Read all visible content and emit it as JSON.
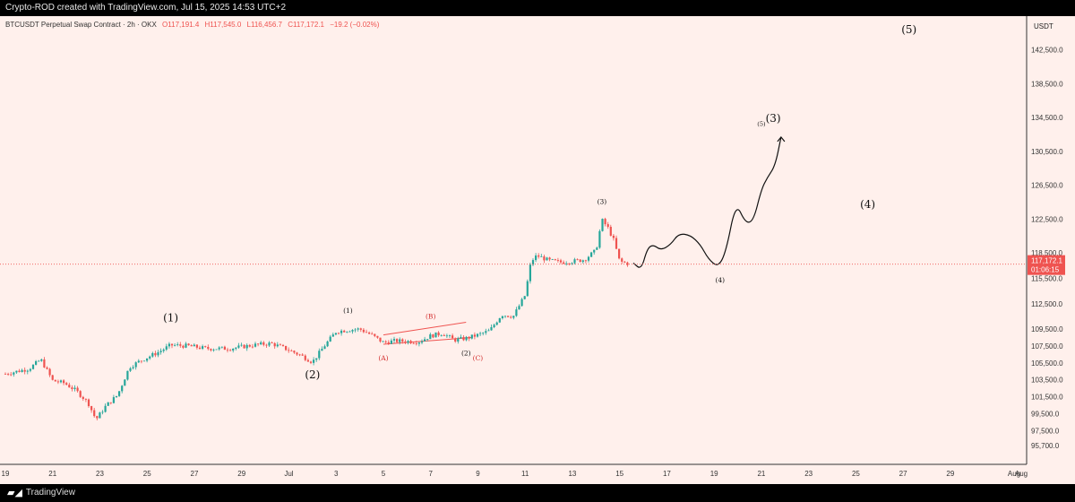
{
  "header": {
    "credit": "Crypto-ROD created with TradingView.com, Jul 15, 2025 14:53 UTC+2"
  },
  "footer": {
    "brand": "TradingView",
    "brand_icon": "tradingview-logo-icon"
  },
  "colors": {
    "background": "#fff0ec",
    "up": "#26a69a",
    "down": "#ef5350",
    "path": "#111111",
    "price_tag": "#ef5350"
  },
  "chart_data": {
    "type": "candlestick",
    "legend": {
      "symbol": "BTCUSDT Perpetual Swap Contract · 2h · OKX",
      "open": "O117,191.4",
      "high": "H117,545.0",
      "low": "L116,456.7",
      "close": "C117,172.1",
      "change": "−19.2 (−0.02%)"
    },
    "currency": "USDT",
    "last_price": "117,172.1",
    "countdown": "01:06:15",
    "last_price_value": 117172.1,
    "y_axis": {
      "min": 93500,
      "max": 146500,
      "ticks": [
        95700,
        97500,
        99500,
        101500,
        103500,
        105500,
        107500,
        109500,
        112500,
        115500,
        118500,
        122500,
        126500,
        130500,
        134500,
        138500,
        142500
      ],
      "tick_labels": [
        "95,700.0",
        "97,500.0",
        "99,500.0",
        "101,500.0",
        "103,500.0",
        "105,500.0",
        "107,500.0",
        "109,500.0",
        "112,500.0",
        "115,500.0",
        "118,500.0",
        "122,500.0",
        "126,500.0",
        "130,500.0",
        "134,500.0",
        "138,500.0",
        "142,500.0"
      ]
    },
    "x_axis": {
      "start": "2025-06-19",
      "end": "2025-08-01",
      "ticks": [
        "2025-06-19",
        "2025-06-21",
        "2025-06-23",
        "2025-06-25",
        "2025-06-27",
        "2025-06-29",
        "2025-07-01",
        "2025-07-03",
        "2025-07-05",
        "2025-07-07",
        "2025-07-09",
        "2025-07-11",
        "2025-07-13",
        "2025-07-15",
        "2025-07-17",
        "2025-07-19",
        "2025-07-21",
        "2025-07-23",
        "2025-07-25",
        "2025-07-27",
        "2025-07-29",
        "2025-08-01"
      ],
      "tick_labels": [
        "19",
        "21",
        "23",
        "25",
        "27",
        "29",
        "Jul",
        "3",
        "5",
        "7",
        "9",
        "11",
        "13",
        "15",
        "17",
        "19",
        "21",
        "23",
        "25",
        "27",
        "29",
        "Aug"
      ]
    },
    "price_anchors": [
      {
        "x": "2025-06-19T00:00",
        "y": 104200
      },
      {
        "x": "2025-06-20T00:00",
        "y": 104800
      },
      {
        "x": "2025-06-20T12:00",
        "y": 105900
      },
      {
        "x": "2025-06-21T00:00",
        "y": 103400
      },
      {
        "x": "2025-06-21T12:00",
        "y": 103100
      },
      {
        "x": "2025-06-22T00:00",
        "y": 102200
      },
      {
        "x": "2025-06-22T12:00",
        "y": 100800
      },
      {
        "x": "2025-06-22T20:00",
        "y": 98800
      },
      {
        "x": "2025-06-23T06:00",
        "y": 100400
      },
      {
        "x": "2025-06-23T18:00",
        "y": 101700
      },
      {
        "x": "2025-06-24T06:00",
        "y": 105000
      },
      {
        "x": "2025-06-24T18:00",
        "y": 105800
      },
      {
        "x": "2025-06-25T12:00",
        "y": 106800
      },
      {
        "x": "2025-06-26T00:00",
        "y": 107600
      },
      {
        "x": "2025-06-26T18:00",
        "y": 107500
      },
      {
        "x": "2025-06-27T12:00",
        "y": 107200
      },
      {
        "x": "2025-06-28T12:00",
        "y": 107200
      },
      {
        "x": "2025-06-29T12:00",
        "y": 107600
      },
      {
        "x": "2025-06-30T06:00",
        "y": 107800
      },
      {
        "x": "2025-06-30T18:00",
        "y": 107300
      },
      {
        "x": "2025-07-01T12:00",
        "y": 106400
      },
      {
        "x": "2025-07-02T00:00",
        "y": 105600
      },
      {
        "x": "2025-07-02T12:00",
        "y": 107500
      },
      {
        "x": "2025-07-03T00:00",
        "y": 109200
      },
      {
        "x": "2025-07-03T12:00",
        "y": 109400
      },
      {
        "x": "2025-07-04T00:00",
        "y": 109500
      },
      {
        "x": "2025-07-04T12:00",
        "y": 108800
      },
      {
        "x": "2025-07-05T00:00",
        "y": 107900
      },
      {
        "x": "2025-07-05T12:00",
        "y": 108100
      },
      {
        "x": "2025-07-06T12:00",
        "y": 108000
      },
      {
        "x": "2025-07-07T00:00",
        "y": 108700
      },
      {
        "x": "2025-07-07T12:00",
        "y": 109000
      },
      {
        "x": "2025-07-08T00:00",
        "y": 108200
      },
      {
        "x": "2025-07-08T12:00",
        "y": 108400
      },
      {
        "x": "2025-07-09T00:00",
        "y": 108800
      },
      {
        "x": "2025-07-09T12:00",
        "y": 109300
      },
      {
        "x": "2025-07-10T00:00",
        "y": 111200
      },
      {
        "x": "2025-07-10T12:00",
        "y": 111000
      },
      {
        "x": "2025-07-11T00:00",
        "y": 113500
      },
      {
        "x": "2025-07-11T06:00",
        "y": 117500
      },
      {
        "x": "2025-07-11T12:00",
        "y": 118200
      },
      {
        "x": "2025-07-12T00:00",
        "y": 117600
      },
      {
        "x": "2025-07-12T12:00",
        "y": 117400
      },
      {
        "x": "2025-07-13T00:00",
        "y": 117500
      },
      {
        "x": "2025-07-13T12:00",
        "y": 117700
      },
      {
        "x": "2025-07-14T00:00",
        "y": 118800
      },
      {
        "x": "2025-07-14T06:00",
        "y": 122400
      },
      {
        "x": "2025-07-14T12:00",
        "y": 121500
      },
      {
        "x": "2025-07-14T18:00",
        "y": 120000
      },
      {
        "x": "2025-07-15T00:00",
        "y": 117500
      },
      {
        "x": "2025-07-15T10:00",
        "y": 117172
      }
    ],
    "projection_path": [
      {
        "x": "2025-07-15T14:00",
        "y": 117300
      },
      {
        "x": "2025-07-15T22:00",
        "y": 116500
      },
      {
        "x": "2025-07-16T04:00",
        "y": 119000
      },
      {
        "x": "2025-07-16T10:00",
        "y": 119500
      },
      {
        "x": "2025-07-16T18:00",
        "y": 118800
      },
      {
        "x": "2025-07-17T04:00",
        "y": 119500
      },
      {
        "x": "2025-07-17T12:00",
        "y": 120800
      },
      {
        "x": "2025-07-18T00:00",
        "y": 120600
      },
      {
        "x": "2025-07-18T10:00",
        "y": 119500
      },
      {
        "x": "2025-07-18T18:00",
        "y": 117800
      },
      {
        "x": "2025-07-19T04:00",
        "y": 116800
      },
      {
        "x": "2025-07-19T12:00",
        "y": 118600
      },
      {
        "x": "2025-07-19T22:00",
        "y": 124500
      },
      {
        "x": "2025-07-20T08:00",
        "y": 122000
      },
      {
        "x": "2025-07-20T16:00",
        "y": 122300
      },
      {
        "x": "2025-07-21T00:00",
        "y": 126000
      },
      {
        "x": "2025-07-21T06:00",
        "y": 127400
      },
      {
        "x": "2025-07-21T14:00",
        "y": 128800
      },
      {
        "x": "2025-07-21T20:00",
        "y": 132200
      }
    ],
    "channel_lines": [
      {
        "from": {
          "x": "2025-07-05T00:00",
          "y": 108800
        },
        "to": {
          "x": "2025-07-08T12:00",
          "y": 110300
        }
      },
      {
        "from": {
          "x": "2025-07-05T00:00",
          "y": 107700
        },
        "to": {
          "x": "2025-07-08T18:00",
          "y": 108500
        }
      }
    ],
    "wave_labels": [
      {
        "text": "(1)",
        "x": "2025-06-26T00:00",
        "y": 110400,
        "size": "large",
        "color": "#111111"
      },
      {
        "text": "(2)",
        "x": "2025-07-02T00:00",
        "y": 103700,
        "size": "large",
        "color": "#111111"
      },
      {
        "text": "(1)",
        "x": "2025-07-03T12:00",
        "y": 111400,
        "size": "small",
        "color": "#111111"
      },
      {
        "text": "(A)",
        "x": "2025-07-05T00:00",
        "y": 105800,
        "size": "small",
        "color": "#d32f2f"
      },
      {
        "text": "(B)",
        "x": "2025-07-07T00:00",
        "y": 110700,
        "size": "small",
        "color": "#d32f2f"
      },
      {
        "text": "(2)",
        "x": "2025-07-08T12:00",
        "y": 106400,
        "size": "small",
        "color": "#111111"
      },
      {
        "text": "(C)",
        "x": "2025-07-09T00:00",
        "y": 105800,
        "size": "small",
        "color": "#d32f2f"
      },
      {
        "text": "(3)",
        "x": "2025-07-14T06:00",
        "y": 124300,
        "size": "small",
        "color": "#111111"
      },
      {
        "text": "(4)",
        "x": "2025-07-19T06:00",
        "y": 115000,
        "size": "small",
        "color": "#111111"
      },
      {
        "text": "(5)",
        "x": "2025-07-21T00:00",
        "y": 133500,
        "size": "tiny",
        "color": "#111111"
      },
      {
        "text": "(3)",
        "x": "2025-07-21T12:00",
        "y": 134000,
        "size": "large",
        "color": "#111111"
      },
      {
        "text": "(4)",
        "x": "2025-07-25T12:00",
        "y": 123800,
        "size": "large",
        "color": "#111111"
      },
      {
        "text": "(5)",
        "x": "2025-07-27T06:00",
        "y": 144500,
        "size": "large",
        "color": "#111111"
      }
    ]
  }
}
